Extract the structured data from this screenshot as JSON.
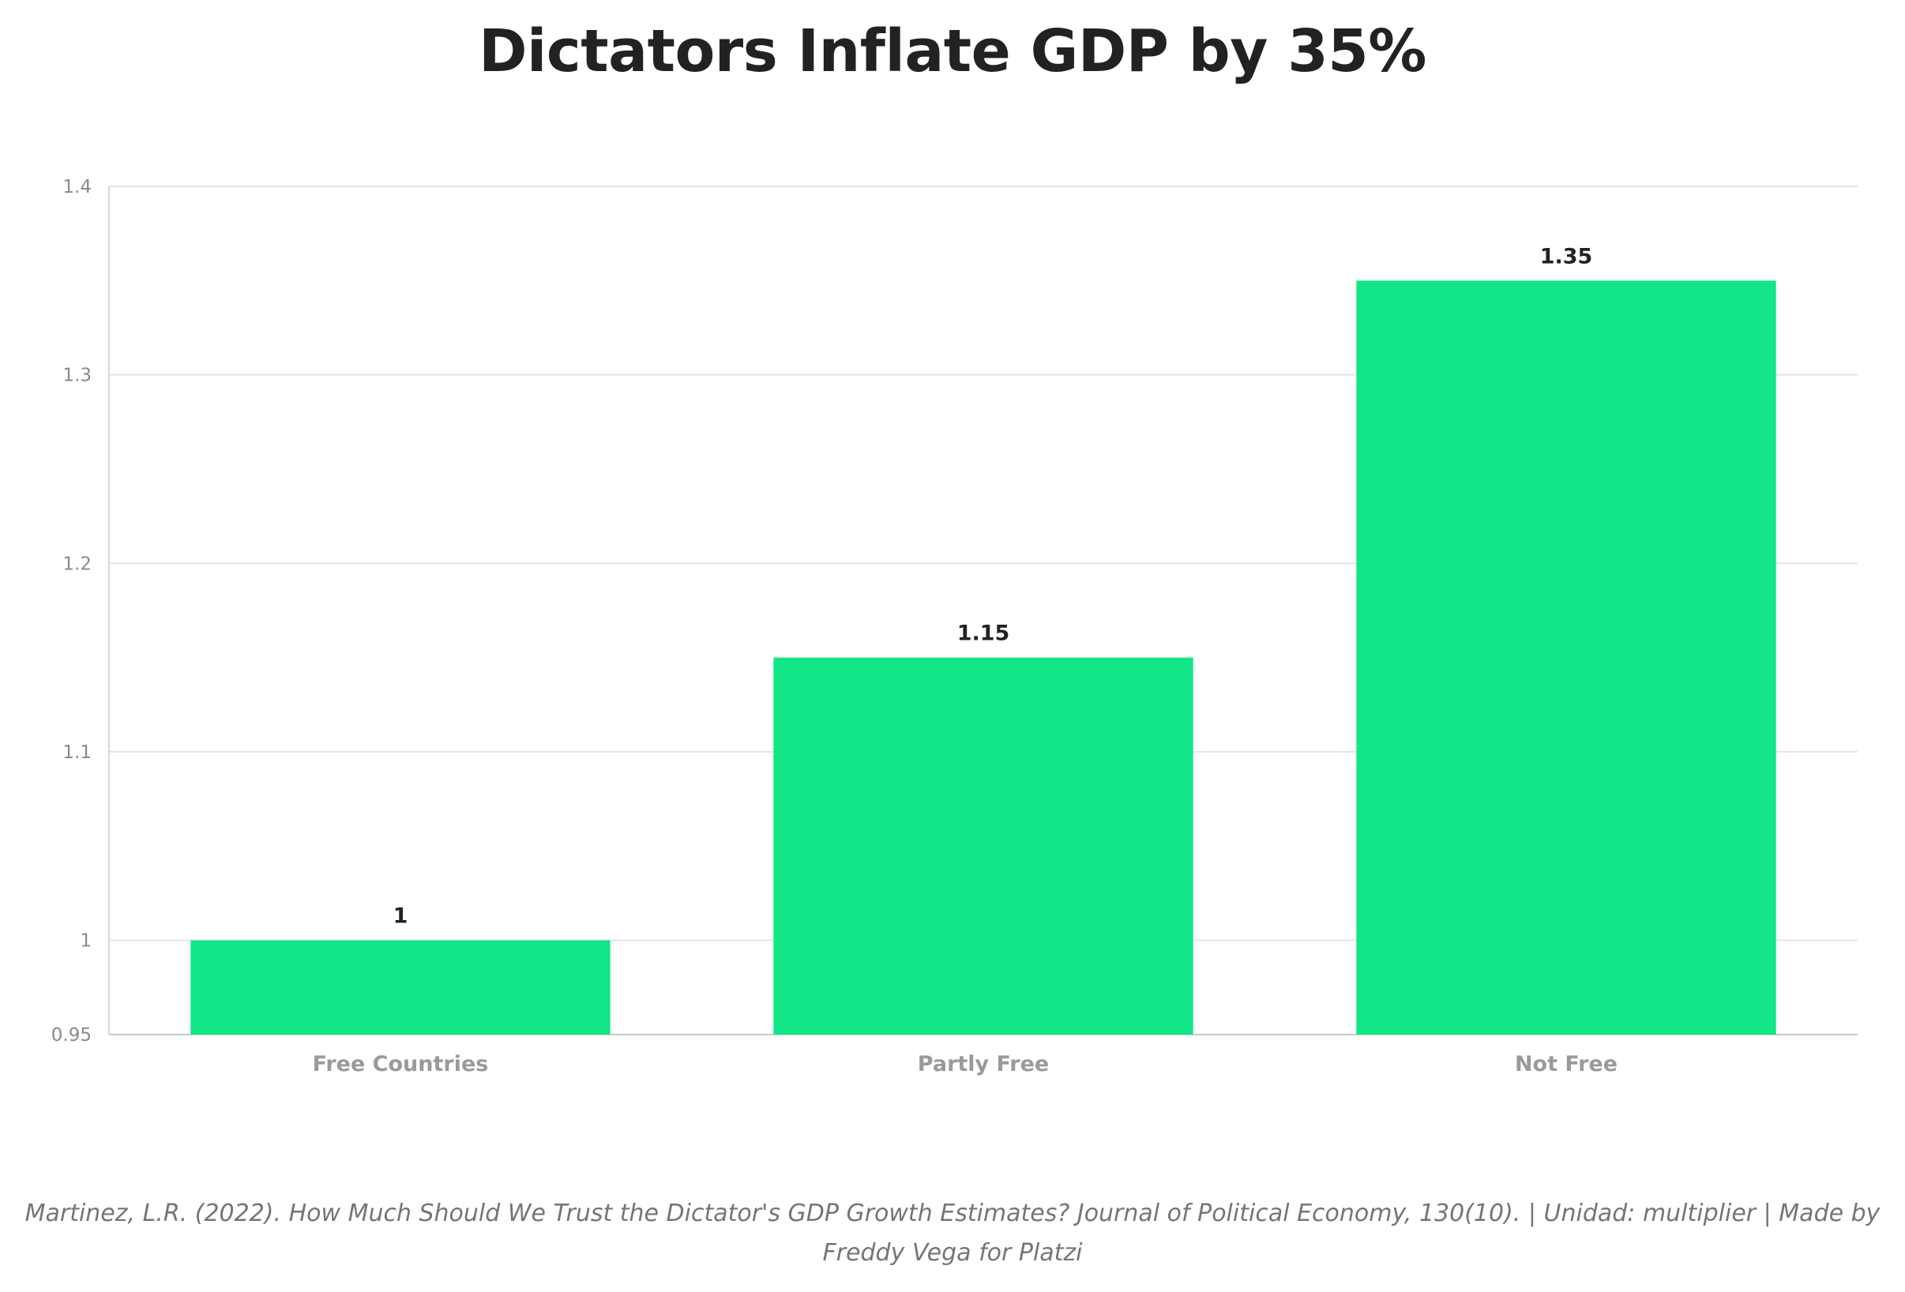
{
  "chart_data": {
    "type": "bar",
    "title": "Dictators Inflate GDP by 35%",
    "categories": [
      "Free Countries",
      "Partly Free",
      "Not Free"
    ],
    "values": [
      1,
      1.15,
      1.35
    ],
    "value_labels": [
      "1",
      "1.15",
      "1.35"
    ],
    "xlabel": "",
    "ylabel": "",
    "ylim": [
      0.95,
      1.4
    ],
    "yticks": [
      0.95,
      1,
      1.1,
      1.2,
      1.3,
      1.4
    ],
    "ytick_labels": [
      "0.95",
      "1",
      "1.1",
      "1.2",
      "1.3",
      "1.4"
    ],
    "grid": true,
    "bar_color": "#12e687",
    "caption": "Martinez, L.R. (2022). How Much Should We Trust the Dictator's GDP Growth Estimates? Journal of Political Economy, 130(10). | Unidad: multiplier | Made by Freddy Vega for Platzi"
  }
}
